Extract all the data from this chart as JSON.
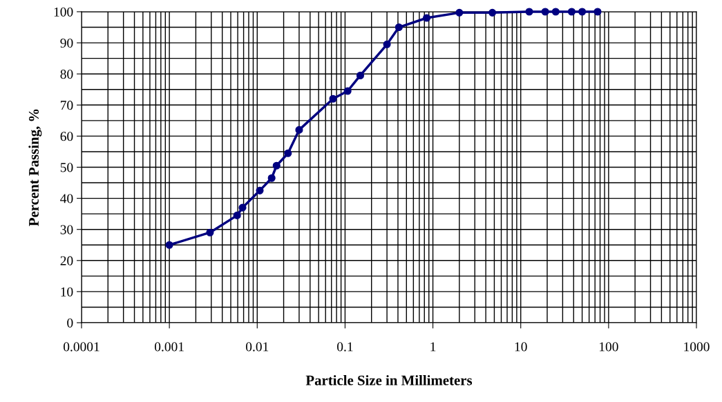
{
  "chart_data": {
    "type": "line",
    "xlabel": "Particle Size in Millimeters",
    "ylabel": "Percent Passing, %",
    "log": "x",
    "grid": true,
    "marker": "circle",
    "line_style": "solid",
    "xlim": [
      0.0001,
      1000
    ],
    "xticks": [
      {
        "value": 0.0001,
        "label": "0.0001"
      },
      {
        "value": 0.001,
        "label": "0.001"
      },
      {
        "value": 0.01,
        "label": "0.01"
      },
      {
        "value": 0.1,
        "label": "0.1"
      },
      1,
      10,
      100,
      1000
    ],
    "ylim": [
      0,
      100
    ],
    "yticks": [
      0,
      10,
      20,
      30,
      40,
      50,
      60,
      70,
      80,
      90,
      100
    ],
    "series": [
      {
        "color": "#000080",
        "x": [
          0.001,
          0.0029,
          0.0059,
          0.0068,
          0.0107,
          0.0146,
          0.0166,
          0.0224,
          0.03,
          0.073,
          0.107,
          0.149,
          0.3,
          0.41,
          0.85,
          2.0,
          4.75,
          12.5,
          19,
          25,
          38,
          50,
          75
        ],
        "values": [
          25,
          29,
          34.5,
          37,
          42.5,
          46.5,
          50.5,
          54.5,
          62,
          72,
          74.5,
          79.5,
          89.5,
          95,
          98,
          99.7,
          99.7,
          100,
          100,
          100,
          100,
          100,
          100
        ]
      }
    ]
  }
}
